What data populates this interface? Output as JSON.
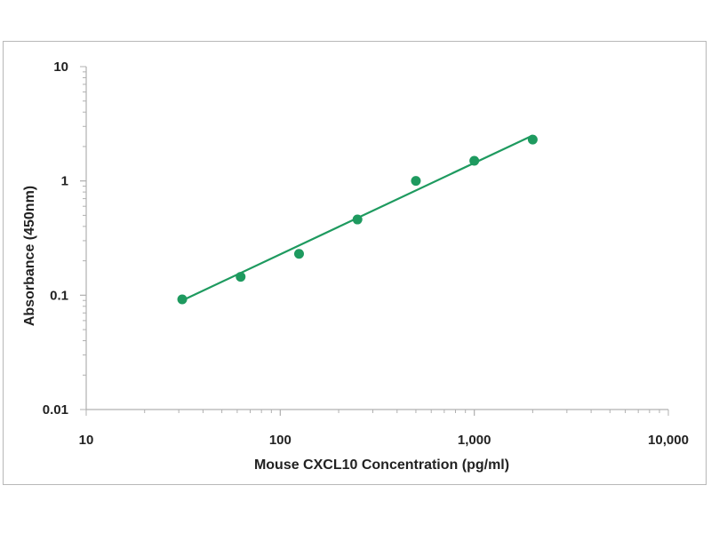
{
  "chart_data": {
    "type": "scatter",
    "title": "",
    "xlabel": "Mouse CXCL10 Concentration (pg/ml)",
    "ylabel": "Absorbance (450nm)",
    "xscale": "log",
    "yscale": "log",
    "xlim": [
      10,
      10000
    ],
    "ylim": [
      0.01,
      10
    ],
    "x_ticks": [
      10,
      100,
      1000,
      10000
    ],
    "x_tick_labels": [
      "10",
      "100",
      "1,000",
      "10,000"
    ],
    "y_ticks": [
      0.01,
      0.1,
      1,
      10
    ],
    "y_tick_labels": [
      "0.01",
      "0.1",
      "1",
      "10"
    ],
    "grid": false,
    "legend": "none",
    "series": [
      {
        "points": [
          {
            "x": 31.25,
            "y": 0.092
          },
          {
            "x": 62.5,
            "y": 0.145
          },
          {
            "x": 125,
            "y": 0.23
          },
          {
            "x": 250,
            "y": 0.46
          },
          {
            "x": 500,
            "y": 1.0
          },
          {
            "x": 1000,
            "y": 1.5
          },
          {
            "x": 2000,
            "y": 2.3
          }
        ],
        "fit_line": {
          "x": [
            31.25,
            2000
          ],
          "y": [
            0.09,
            2.5
          ]
        }
      }
    ],
    "color": "#1e9a5f"
  }
}
